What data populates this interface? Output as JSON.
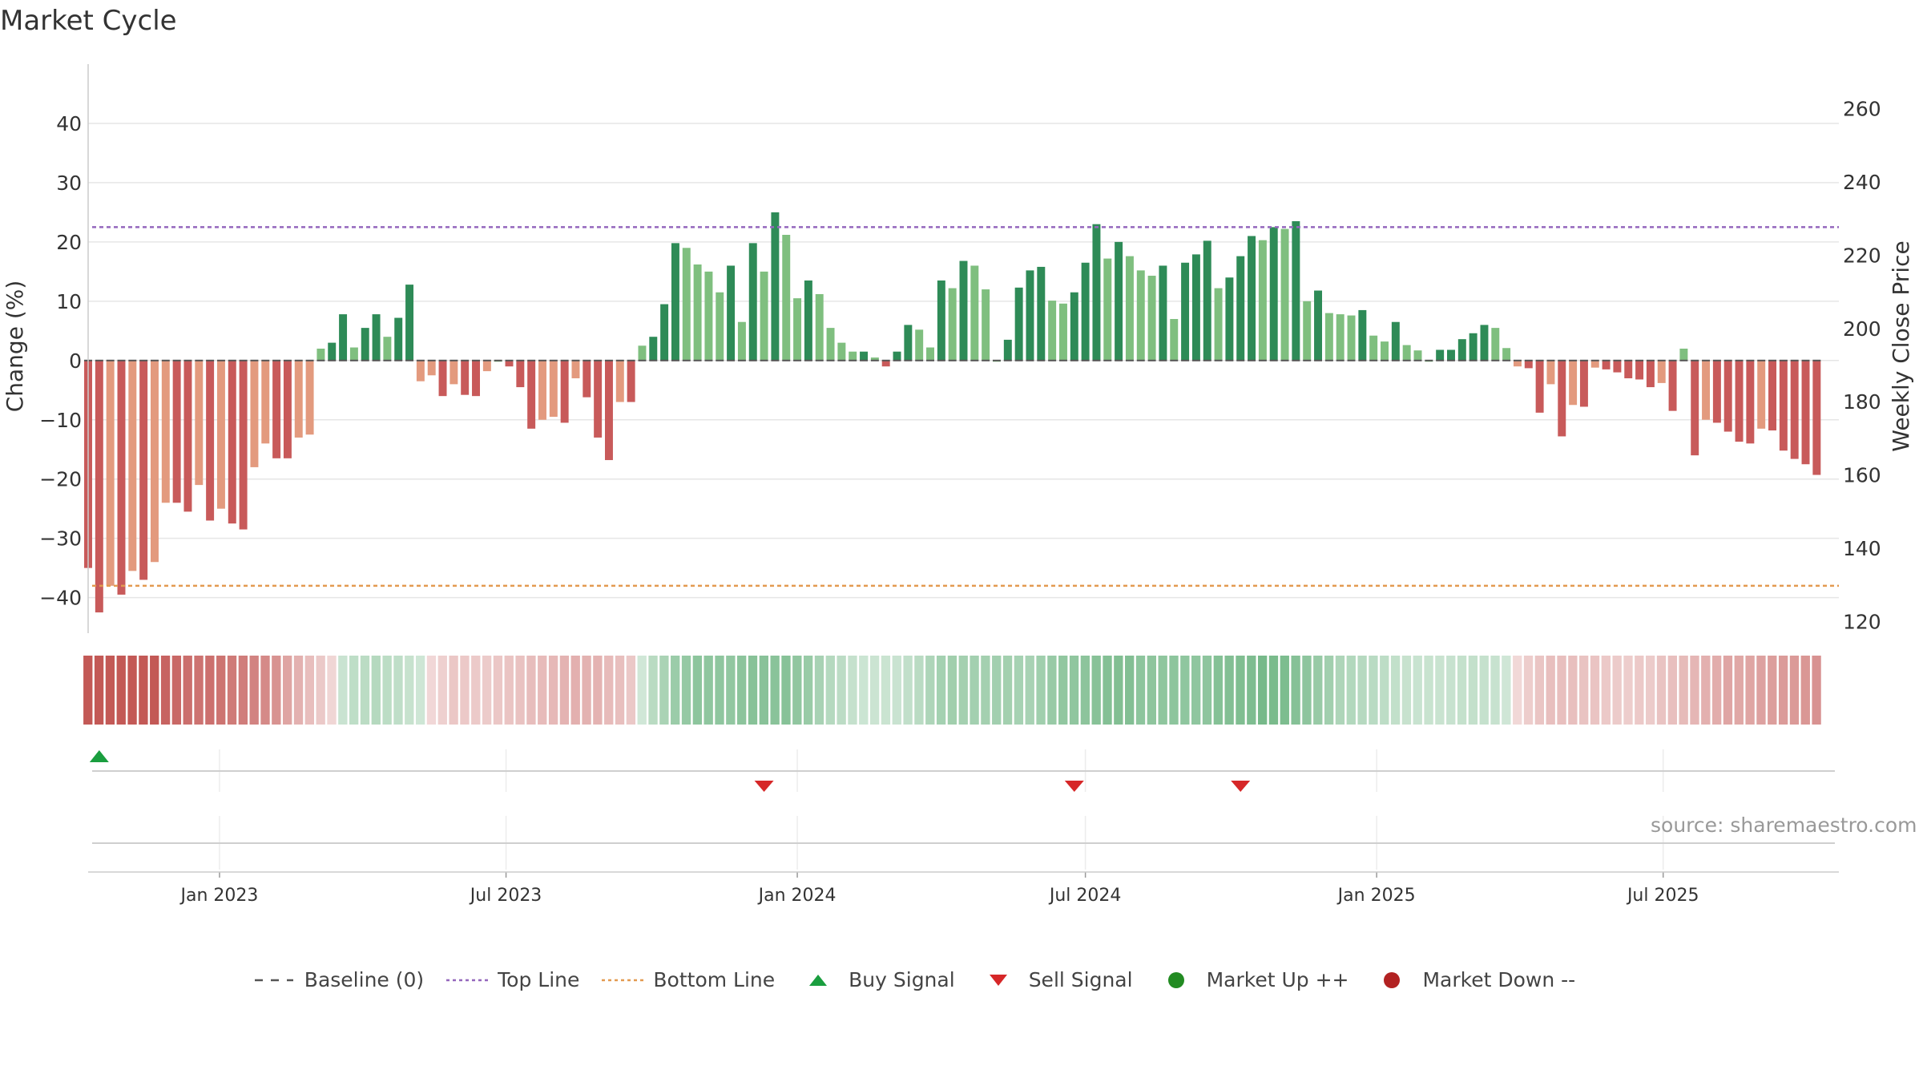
{
  "chart_data": {
    "type": "bar",
    "title": "Market Cycle",
    "ylabel": "Change (%)",
    "y2label": "Weekly Close Price",
    "ylim": [
      -46,
      50
    ],
    "y2lim": [
      116.8,
      272.2
    ],
    "yticks": [
      40,
      30,
      20,
      10,
      0,
      -10,
      -20,
      -30,
      -40
    ],
    "y2ticks": [
      260,
      240,
      220,
      200,
      180,
      160,
      140,
      120
    ],
    "x_start": "2022-10-10",
    "x_end": "2025-10-20",
    "xticks": [
      {
        "date": "2023-01-01",
        "label": "Jan 2023"
      },
      {
        "date": "2023-07-01",
        "label": "Jul 2023"
      },
      {
        "date": "2024-01-01",
        "label": "Jan 2024"
      },
      {
        "date": "2024-07-01",
        "label": "Jul 2024"
      },
      {
        "date": "2025-01-01",
        "label": "Jan 2025"
      },
      {
        "date": "2025-07-01",
        "label": "Jul 2025"
      }
    ],
    "grid": true,
    "top_line": 22.5,
    "bottom_line": -38,
    "baseline": 0,
    "bar_start_date": "2022-10-10",
    "bar_interval_days": 7,
    "values": [
      -35,
      -42.5,
      -38,
      -39.5,
      -35.5,
      -37,
      -34,
      -24,
      -24,
      -25.5,
      -21,
      -27,
      -25,
      -27.5,
      -28.5,
      -18,
      -14,
      -16.5,
      -16.5,
      -13,
      -12.5,
      2,
      3,
      7.8,
      2.2,
      5.5,
      7.8,
      4,
      7.2,
      12.8,
      -3.5,
      -2.5,
      -6,
      -4,
      -5.8,
      -6,
      -1.8,
      0,
      -1,
      -4.5,
      -11.5,
      -10,
      -9.5,
      -10.5,
      -3,
      -6.2,
      -13,
      -16.8,
      -7,
      -7,
      2.5,
      4,
      9.5,
      19.8,
      19,
      16.2,
      15,
      11.5,
      16,
      6.5,
      19.8,
      15,
      25,
      21.2,
      10.5,
      13.5,
      11.2,
      5.5,
      3,
      1.5,
      1.5,
      0.5,
      -1,
      1.5,
      6,
      5.2,
      2.2,
      13.5,
      12.2,
      16.8,
      16,
      12,
      0,
      3.5,
      12.3,
      15.2,
      15.8,
      10.1,
      9.6,
      11.5,
      16.5,
      23,
      17.2,
      20,
      17.6,
      15.2,
      14.3,
      16,
      7,
      16.5,
      17.9,
      20.2,
      12.2,
      14,
      17.6,
      21,
      20.3,
      22.5,
      22.2,
      23.5,
      10,
      11.8,
      8,
      7.8,
      7.6,
      8.5,
      4.2,
      3.2,
      6.5,
      2.6,
      1.7,
      0,
      1.8,
      1.8,
      3.6,
      4.6,
      6,
      5.5,
      2.1,
      -1,
      -1.3,
      -8.8,
      -4,
      -12.8,
      -7.5,
      -7.8,
      -1.2,
      -1.5,
      -2,
      -3,
      -3.2,
      -4.5,
      -3.8,
      -8.5,
      2,
      -16,
      -10,
      -10.5,
      -12,
      -13.7,
      -14,
      -11.5,
      -11.8,
      -15.2,
      -16.6,
      -17.5,
      -19.3
    ],
    "signals": [
      {
        "type": "Buy Signal",
        "date": "2022-10-17"
      },
      {
        "type": "Sell Signal",
        "date": "2023-12-11"
      },
      {
        "type": "Sell Signal",
        "date": "2024-06-24"
      },
      {
        "type": "Sell Signal",
        "date": "2024-10-07"
      }
    ],
    "colors": {
      "up_strong": "#2e8b57",
      "up_light": "#7fbf7f",
      "down_strong": "#c85a5a",
      "down_light": "#e39a7e",
      "top_line": "#9467bd",
      "bottom_line": "#e39a50",
      "buy": "#1a9e3f",
      "sell": "#d62728",
      "market_up": "#228b22",
      "market_down": "#b22222"
    }
  },
  "source_note": "source: sharemaestro.com",
  "legend": [
    {
      "label": "Baseline (0)",
      "symbol": "dash",
      "color": "#555555"
    },
    {
      "label": "Top Line",
      "symbol": "dot",
      "color": "#9467bd"
    },
    {
      "label": "Bottom Line",
      "symbol": "dot",
      "color": "#e39a50"
    },
    {
      "label": "Buy Signal",
      "symbol": "triangle-up",
      "color": "#1a9e3f"
    },
    {
      "label": "Sell Signal",
      "symbol": "triangle-down",
      "color": "#d62728"
    },
    {
      "label": "Market Up ++",
      "symbol": "circle",
      "color": "#228b22"
    },
    {
      "label": "Market Down --",
      "symbol": "circle",
      "color": "#b22222"
    }
  ]
}
